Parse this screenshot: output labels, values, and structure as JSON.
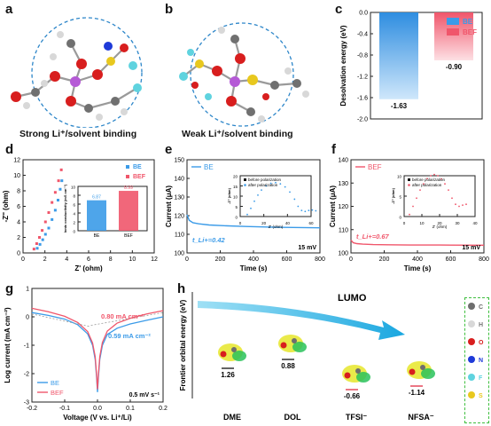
{
  "panels": {
    "a": "a",
    "b": "b",
    "c": "c",
    "d": "d",
    "e": "e",
    "f": "f",
    "g": "g",
    "h": "h"
  },
  "molecule_a_caption": "Strong Li⁺/solvent binding",
  "molecule_b_caption": "Weak Li⁺/solvent binding",
  "colors": {
    "be": "#3b9be8",
    "bef": "#f0566b",
    "dashed": "#2d86c9"
  },
  "chart_data": [
    {
      "panel": "c",
      "type": "bar",
      "categories": [
        "BE",
        "BEF"
      ],
      "values": [
        -1.63,
        -0.9
      ],
      "value_labels": [
        "-1.63",
        "-0.90"
      ],
      "ylabel": "Desolvation energy (eV)",
      "ylim": [
        -2.0,
        0.0
      ],
      "yticks": [
        "-2.0",
        "-1.6",
        "-1.2",
        "-0.8",
        "-0.4",
        "0.0"
      ],
      "legend": [
        "BE",
        "BEF"
      ]
    },
    {
      "panel": "d",
      "type": "scatter",
      "xlabel": "Z' (ohm)",
      "ylabel": "-Z'' (ohm)",
      "xlim": [
        0,
        12
      ],
      "ylim": [
        0,
        12
      ],
      "xticks": [
        "0",
        "2",
        "4",
        "6",
        "8",
        "10",
        "12"
      ],
      "yticks": [
        "0",
        "2",
        "4",
        "6",
        "8",
        "10",
        "12"
      ],
      "series": [
        {
          "name": "BE",
          "points": [
            [
              1.3,
              0.6
            ],
            [
              1.55,
              1.1
            ],
            [
              1.8,
              1.7
            ],
            [
              2.05,
              2.4
            ],
            [
              2.35,
              3.2
            ],
            [
              2.65,
              4.3
            ],
            [
              2.95,
              5.5
            ],
            [
              3.2,
              6.8
            ],
            [
              3.4,
              8.2
            ],
            [
              3.55,
              9.3
            ]
          ]
        },
        {
          "name": "BEF",
          "points": [
            [
              1.0,
              0.5
            ],
            [
              1.25,
              1.2
            ],
            [
              1.5,
              2.0
            ],
            [
              1.75,
              2.9
            ],
            [
              2.05,
              4.0
            ],
            [
              2.35,
              5.2
            ],
            [
              2.65,
              6.5
            ],
            [
              2.95,
              7.8
            ],
            [
              3.25,
              9.3
            ],
            [
              3.5,
              10.7
            ]
          ]
        }
      ],
      "inset": {
        "type": "bar",
        "categories": [
          "BE",
          "BEF"
        ],
        "values": [
          6.87,
          8.99
        ],
        "value_labels": [
          "6.87",
          "8.99"
        ],
        "ylabel": "Ionic conductivity (mS cm⁻¹)",
        "ylim": [
          0,
          10
        ],
        "yticks": [
          "0",
          "2",
          "4",
          "6",
          "8",
          "10"
        ]
      }
    },
    {
      "panel": "e",
      "type": "line",
      "xlabel": "Time (s)",
      "ylabel": "Current (μA)",
      "xlim": [
        0,
        900
      ],
      "ylim": [
        100,
        150
      ],
      "xticks": [
        "0",
        "200",
        "400",
        "600",
        "800"
      ],
      "yticks": [
        "100",
        "110",
        "120",
        "130",
        "140",
        "150"
      ],
      "legend": [
        "BE"
      ],
      "annotations": [
        "t_Li+=0.42",
        "15 mV"
      ],
      "series": [
        {
          "name": "BE",
          "x": [
            0,
            15,
            40,
            80,
            150,
            250,
            400,
            600,
            900
          ],
          "y": [
            120.5,
            117.5,
            116.2,
            115.6,
            115.0,
            114.6,
            114.2,
            113.8,
            113.5
          ]
        }
      ],
      "inset": {
        "type": "scatter",
        "xlabel": "Z' (ohm)",
        "ylabel": "-Z'' (ohm)",
        "xticks": [
          "0",
          "20",
          "40",
          "60"
        ],
        "yticks": [
          "0",
          "5",
          "10",
          "15",
          "20"
        ],
        "legend": [
          "before polarization",
          "after polarization"
        ],
        "series": [
          {
            "name": "after polarization",
            "x": [
              6,
              9,
              12,
              15,
              18,
              22,
              26,
              30,
              34,
              38,
              42,
              46,
              49,
              52,
              55,
              58,
              61,
              64
            ],
            "y": [
              1,
              4,
              7.5,
              10.5,
              13,
              15,
              16.3,
              16.6,
              16,
              14.5,
              12,
              8.5,
              5,
              3,
              2.5,
              3,
              3.2,
              2.8
            ]
          }
        ]
      }
    },
    {
      "panel": "f",
      "type": "line",
      "xlabel": "Time (s)",
      "ylabel": "Current (μA)",
      "xlim": [
        0,
        900
      ],
      "ylim": [
        100,
        140
      ],
      "xticks": [
        "0",
        "200",
        "400",
        "600",
        "800"
      ],
      "yticks": [
        "100",
        "110",
        "120",
        "130",
        "140"
      ],
      "legend": [
        "BEF"
      ],
      "annotations": [
        "t_Li+=0.67",
        "15 mV"
      ],
      "series": [
        {
          "name": "BEF",
          "x": [
            0,
            15,
            40,
            80,
            150,
            250,
            400,
            600,
            900
          ],
          "y": [
            105.5,
            104.4,
            104.0,
            103.8,
            103.6,
            103.5,
            103.4,
            103.4,
            103.3
          ]
        }
      ],
      "inset": {
        "type": "scatter",
        "xlabel": "Z' (ohm)",
        "ylabel": "-Z'' (ohm)",
        "xticks": [
          "0",
          "10",
          "20",
          "30",
          "40"
        ],
        "yticks": [
          "0",
          "5",
          "10"
        ],
        "legend": [
          "before polarization",
          "after polarization"
        ],
        "series": [
          {
            "name": "after polarization",
            "x": [
              3,
              5,
              7,
              9,
              11,
              13,
              15,
              17,
              19,
              21,
              23,
              25,
              27,
              29,
              31,
              33,
              35
            ],
            "y": [
              0.5,
              2.5,
              4.5,
              6.5,
              8,
              9.3,
              10,
              10.3,
              10,
              9.2,
              8,
              6.5,
              4.5,
              3,
              2.5,
              2.8,
              3
            ]
          }
        ]
      }
    },
    {
      "panel": "g",
      "type": "line",
      "xlabel": "Voltage (V vs. Li⁺/Li)",
      "ylabel": "Log current (mA cm⁻²)",
      "xlim": [
        -0.2,
        0.2
      ],
      "ylim": [
        -3,
        1
      ],
      "xticks": [
        "-0.2",
        "-0.1",
        "0.0",
        "0.1",
        "0.2"
      ],
      "yticks": [
        "-3",
        "-2",
        "-1",
        "0",
        "1"
      ],
      "legend": [
        "BE",
        "BEF"
      ],
      "annotations": [
        "0.80 mA cm⁻²",
        "0.59 mA cm⁻²",
        "0.5 mV s⁻¹"
      ],
      "series": [
        {
          "name": "BE",
          "x": [
            -0.2,
            -0.15,
            -0.1,
            -0.06,
            -0.03,
            -0.015,
            -0.007,
            -0.003,
            0.0,
            0.003,
            0.007,
            0.015,
            0.03,
            0.06,
            0.1,
            0.15,
            0.2
          ],
          "y": [
            0.15,
            0.05,
            -0.08,
            -0.28,
            -0.6,
            -1.0,
            -1.5,
            -2.1,
            -2.65,
            -2.1,
            -1.5,
            -1.0,
            -0.62,
            -0.4,
            -0.25,
            -0.12,
            0.0
          ]
        },
        {
          "name": "BEF",
          "x": [
            -0.2,
            -0.15,
            -0.1,
            -0.06,
            -0.03,
            -0.015,
            -0.007,
            -0.003,
            0.0,
            0.003,
            0.007,
            0.015,
            0.03,
            0.06,
            0.1,
            0.15,
            0.2
          ],
          "y": [
            0.3,
            0.18,
            0.02,
            -0.2,
            -0.52,
            -0.92,
            -1.4,
            -2.0,
            -2.55,
            -2.0,
            -1.4,
            -0.9,
            -0.5,
            -0.22,
            -0.05,
            0.1,
            0.22
          ]
        }
      ]
    },
    {
      "panel": "h",
      "type": "bar",
      "ylabel": "Frontier orbital energy (eV)",
      "categories": [
        "DME",
        "DOL",
        "TFSI⁻",
        "NFSA⁻"
      ],
      "values": [
        1.26,
        0.88,
        -0.66,
        -1.14
      ],
      "value_labels": [
        "1.26",
        "0.88",
        "-0.66",
        "-1.14"
      ],
      "annotations": [
        "LUMO"
      ]
    }
  ],
  "legend_h": [
    "C",
    "H",
    "O",
    "N",
    "F",
    "S"
  ],
  "legend_h_colors": [
    "#6e6e6e",
    "#d8d8d8",
    "#d81e1e",
    "#1e3ad8",
    "#5fd3df",
    "#e8c81e"
  ]
}
